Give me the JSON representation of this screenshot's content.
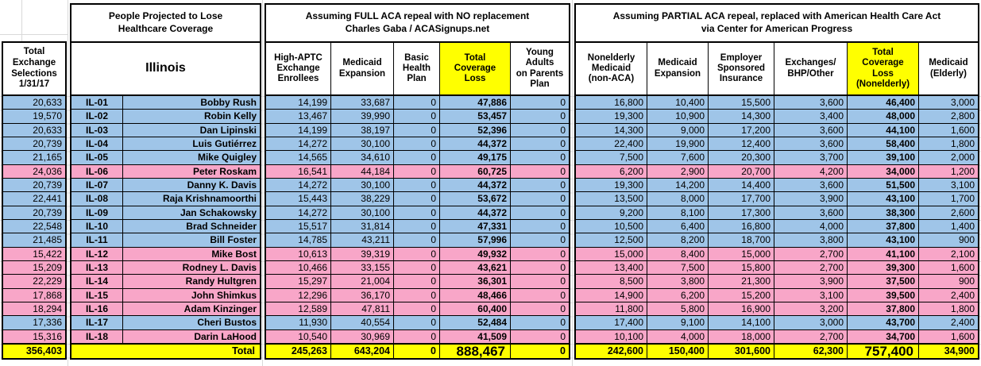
{
  "titles": {
    "projected": "People Projected to Lose\nHealthcare Coverage",
    "state": "Illinois",
    "full_repeal": "Assuming FULL ACA repeal with NO replacement\nCharles Gaba / ACASignups.net",
    "partial_repeal": "Assuming PARTIAL ACA repeal, replaced with American Health Care Act\nvia Center for American Progress"
  },
  "headers": {
    "total_exchange": "Total\nExchange\nSelections\n1/31/17",
    "full_repeal_columns": [
      "High-APTC\nExchange\nEnrollees",
      "Medicaid\nExpansion",
      "Basic\nHealth\nPlan",
      "Total\nCoverage\nLoss",
      "Young\nAdults\non Parents\nPlan"
    ],
    "partial_repeal_columns": [
      "Nonelderly\nMedicaid\n(non-ACA)",
      "Medicaid\nExpansion",
      "Employer\nSponsored\nInsurance",
      "Exchanges/\nBHP/Other",
      "Total\nCoverage\nLoss\n(Nonelderly)",
      "Medicaid\n(Elderly)"
    ]
  },
  "colors": {
    "blue": "#9fc5e8",
    "pink": "#f8a6c8",
    "highlight": "#ffff00"
  },
  "rows": [
    {
      "district": "IL-01",
      "rep": "Bobby Rush",
      "color": "blue",
      "exchange_selections": "20,633",
      "full": [
        "14,199",
        "33,687",
        "0",
        "47,886",
        "0"
      ],
      "partial": [
        "16,800",
        "10,400",
        "15,500",
        "3,600",
        "46,400",
        "3,000"
      ]
    },
    {
      "district": "IL-02",
      "rep": "Robin Kelly",
      "color": "blue",
      "exchange_selections": "19,570",
      "full": [
        "13,467",
        "39,990",
        "0",
        "53,457",
        "0"
      ],
      "partial": [
        "19,300",
        "10,900",
        "14,300",
        "3,400",
        "48,000",
        "2,800"
      ]
    },
    {
      "district": "IL-03",
      "rep": "Dan Lipinski",
      "color": "blue",
      "exchange_selections": "20,633",
      "full": [
        "14,199",
        "38,197",
        "0",
        "52,396",
        "0"
      ],
      "partial": [
        "14,300",
        "9,000",
        "17,200",
        "3,600",
        "44,100",
        "1,600"
      ]
    },
    {
      "district": "IL-04",
      "rep": "Luis Gutiérrez",
      "color": "blue",
      "exchange_selections": "20,739",
      "full": [
        "14,272",
        "30,100",
        "0",
        "44,372",
        "0"
      ],
      "partial": [
        "22,400",
        "19,900",
        "12,400",
        "3,600",
        "58,400",
        "1,800"
      ]
    },
    {
      "district": "IL-05",
      "rep": "Mike Quigley",
      "color": "blue",
      "exchange_selections": "21,165",
      "full": [
        "14,565",
        "34,610",
        "0",
        "49,175",
        "0"
      ],
      "partial": [
        "7,500",
        "7,600",
        "20,300",
        "3,700",
        "39,100",
        "2,000"
      ]
    },
    {
      "district": "IL-06",
      "rep": "Peter Roskam",
      "color": "pink",
      "exchange_selections": "24,036",
      "full": [
        "16,541",
        "44,184",
        "0",
        "60,725",
        "0"
      ],
      "partial": [
        "6,200",
        "2,900",
        "20,700",
        "4,200",
        "34,000",
        "1,200"
      ]
    },
    {
      "district": "IL-07",
      "rep": "Danny K. Davis",
      "color": "blue",
      "exchange_selections": "20,739",
      "full": [
        "14,272",
        "30,100",
        "0",
        "44,372",
        "0"
      ],
      "partial": [
        "19,300",
        "14,200",
        "14,400",
        "3,600",
        "51,500",
        "3,100"
      ]
    },
    {
      "district": "IL-08",
      "rep": "Raja Krishnamoorthi",
      "color": "blue",
      "exchange_selections": "22,441",
      "full": [
        "15,443",
        "38,229",
        "0",
        "53,672",
        "0"
      ],
      "partial": [
        "13,500",
        "8,000",
        "17,700",
        "3,900",
        "43,100",
        "1,700"
      ]
    },
    {
      "district": "IL-09",
      "rep": "Jan Schakowsky",
      "color": "blue",
      "exchange_selections": "20,739",
      "full": [
        "14,272",
        "30,100",
        "0",
        "44,372",
        "0"
      ],
      "partial": [
        "9,200",
        "8,100",
        "17,300",
        "3,600",
        "38,300",
        "2,600"
      ]
    },
    {
      "district": "IL-10",
      "rep": "Brad Schneider",
      "color": "blue",
      "exchange_selections": "22,548",
      "full": [
        "15,517",
        "31,814",
        "0",
        "47,331",
        "0"
      ],
      "partial": [
        "10,500",
        "6,400",
        "16,800",
        "4,000",
        "37,800",
        "1,400"
      ]
    },
    {
      "district": "IL-11",
      "rep": "Bill Foster",
      "color": "blue",
      "exchange_selections": "21,485",
      "full": [
        "14,785",
        "43,211",
        "0",
        "57,996",
        "0"
      ],
      "partial": [
        "12,500",
        "8,200",
        "18,700",
        "3,800",
        "43,100",
        "900"
      ]
    },
    {
      "district": "IL-12",
      "rep": "Mike Bost",
      "color": "pink",
      "exchange_selections": "15,422",
      "full": [
        "10,613",
        "39,319",
        "0",
        "49,932",
        "0"
      ],
      "partial": [
        "15,000",
        "8,400",
        "15,000",
        "2,700",
        "41,100",
        "2,100"
      ]
    },
    {
      "district": "IL-13",
      "rep": "Rodney L. Davis",
      "color": "pink",
      "exchange_selections": "15,209",
      "full": [
        "10,466",
        "33,155",
        "0",
        "43,621",
        "0"
      ],
      "partial": [
        "13,400",
        "7,500",
        "15,800",
        "2,700",
        "39,300",
        "1,600"
      ]
    },
    {
      "district": "IL-14",
      "rep": "Randy Hultgren",
      "color": "pink",
      "exchange_selections": "22,229",
      "full": [
        "15,297",
        "21,004",
        "0",
        "36,301",
        "0"
      ],
      "partial": [
        "8,500",
        "3,800",
        "21,300",
        "3,900",
        "37,500",
        "900"
      ]
    },
    {
      "district": "IL-15",
      "rep": "John Shimkus",
      "color": "pink",
      "exchange_selections": "17,868",
      "full": [
        "12,296",
        "36,170",
        "0",
        "48,466",
        "0"
      ],
      "partial": [
        "14,900",
        "6,200",
        "15,200",
        "3,100",
        "39,500",
        "2,400"
      ]
    },
    {
      "district": "IL-16",
      "rep": "Adam Kinzinger",
      "color": "pink",
      "exchange_selections": "18,294",
      "full": [
        "12,589",
        "47,811",
        "0",
        "60,400",
        "0"
      ],
      "partial": [
        "11,800",
        "5,800",
        "16,900",
        "3,200",
        "37,800",
        "1,800"
      ]
    },
    {
      "district": "IL-17",
      "rep": "Cheri Bustos",
      "color": "blue",
      "exchange_selections": "17,336",
      "full": [
        "11,930",
        "40,554",
        "0",
        "52,484",
        "0"
      ],
      "partial": [
        "17,400",
        "9,100",
        "14,100",
        "3,000",
        "43,700",
        "2,400"
      ]
    },
    {
      "district": "IL-18",
      "rep": "Darin LaHood",
      "color": "pink",
      "exchange_selections": "15,316",
      "full": [
        "10,540",
        "30,969",
        "0",
        "41,509",
        "0"
      ],
      "partial": [
        "10,100",
        "4,000",
        "18,000",
        "2,700",
        "34,700",
        "1,600"
      ]
    }
  ],
  "total_row": {
    "label": "Total",
    "exchange_selections": "356,403",
    "full": [
      "245,263",
      "643,204",
      "0",
      "888,467",
      "0"
    ],
    "partial": [
      "242,600",
      "150,400",
      "301,600",
      "62,300",
      "757,400",
      "34,900"
    ]
  }
}
